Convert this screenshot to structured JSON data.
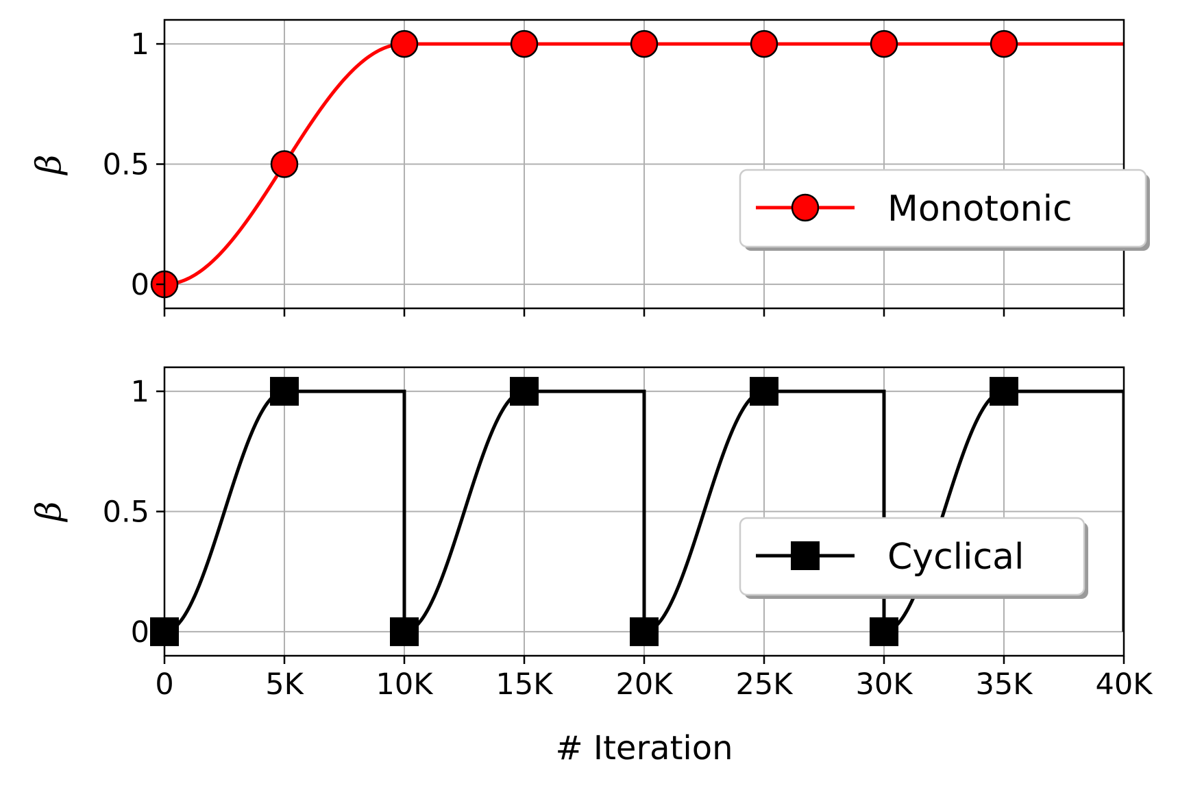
{
  "chart_data": [
    {
      "type": "line",
      "ylabel": "β",
      "xlim": [
        0,
        40000
      ],
      "ylim": [
        -0.1,
        1.1
      ],
      "grid": true,
      "y_ticks": [
        {
          "value": 0,
          "label": "0"
        },
        {
          "value": 0.5,
          "label": "0.5"
        },
        {
          "value": 1,
          "label": "1"
        }
      ],
      "series": [
        {
          "name": "Monotonic",
          "color": "#ff0000",
          "marker": "circle",
          "marker_x": [
            0,
            5000,
            10000,
            15000,
            20000,
            25000,
            30000,
            35000
          ],
          "marker_y": [
            0,
            0.5,
            1,
            1,
            1,
            1,
            1,
            1
          ]
        }
      ],
      "legend": {
        "label": "Monotonic",
        "placement": "center-right"
      }
    },
    {
      "type": "line",
      "ylabel": "β",
      "xlabel": "# Iteration",
      "xlim": [
        0,
        40000
      ],
      "ylim": [
        -0.1,
        1.1
      ],
      "grid": true,
      "y_ticks": [
        {
          "value": 0,
          "label": "0"
        },
        {
          "value": 0.5,
          "label": "0.5"
        },
        {
          "value": 1,
          "label": "1"
        }
      ],
      "x_ticks": [
        {
          "value": 0,
          "label": "0"
        },
        {
          "value": 5000,
          "label": "5K"
        },
        {
          "value": 10000,
          "label": "10K"
        },
        {
          "value": 15000,
          "label": "15K"
        },
        {
          "value": 20000,
          "label": "20K"
        },
        {
          "value": 25000,
          "label": "25K"
        },
        {
          "value": 30000,
          "label": "30K"
        },
        {
          "value": 35000,
          "label": "35K"
        },
        {
          "value": 40000,
          "label": "40K"
        }
      ],
      "series": [
        {
          "name": "Cyclical",
          "color": "#000000",
          "marker": "square",
          "cycle_length": 10000,
          "ramp_length": 5000,
          "marker_x": [
            0,
            5000,
            10000,
            15000,
            20000,
            25000,
            30000,
            35000
          ],
          "marker_y": [
            0,
            1,
            0,
            1,
            0,
            1,
            0,
            1
          ]
        }
      ],
      "legend": {
        "label": "Cyclical",
        "placement": "lower-right"
      }
    }
  ]
}
